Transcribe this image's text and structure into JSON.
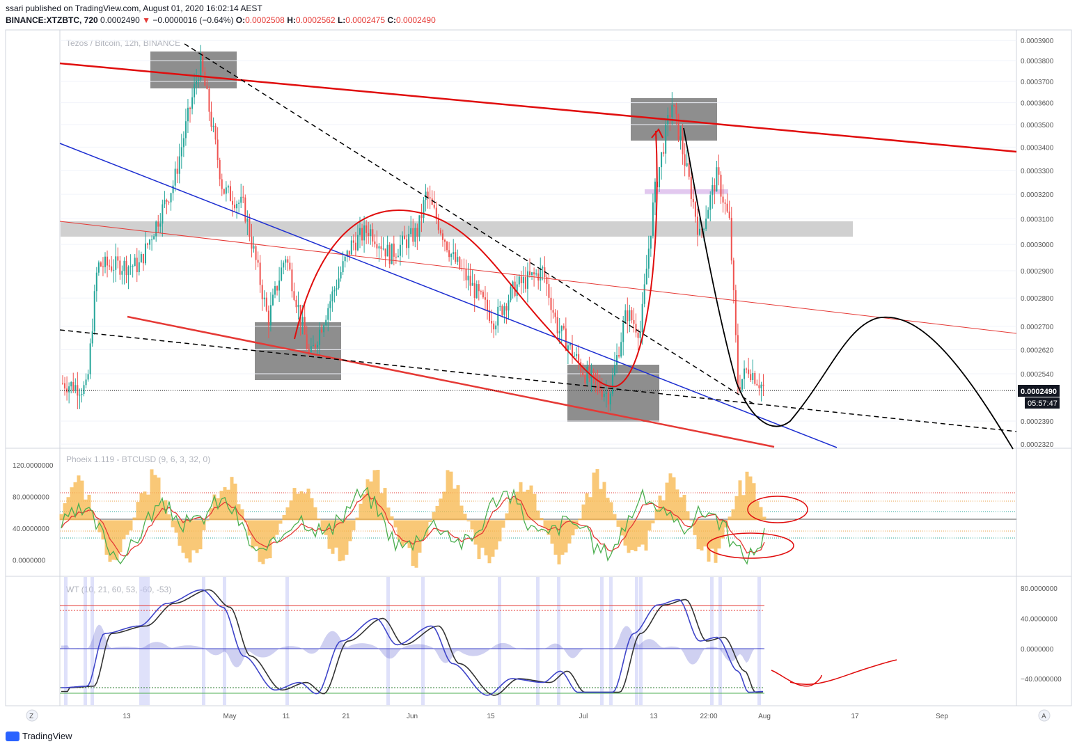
{
  "header": {
    "publisher": "ssari published on TradingView.com, August 01, 2020 16:02:14 AEST",
    "symbol": "BINANCE:XTZBTC, 720",
    "last": "0.0002490",
    "change": "−0.0000016 (−0.64%)",
    "o_label": "O:",
    "o": "0.0002508",
    "h_label": "H:",
    "h": "0.0002562",
    "l_label": "L:",
    "l": "0.0002475",
    "c_label": "C:",
    "c": "0.0002490"
  },
  "main_pane": {
    "watermark": "Tezos / Bitcoin, 12h, BINANCE",
    "price_tag": "0.0002490",
    "countdown": "05:57:47"
  },
  "pane2": {
    "label": "Phoeix 1.119 - BTCUSD (9, 6, 3, 32, 0)"
  },
  "pane3": {
    "label": "WT (10, 21, 60, 53, -60, -53)"
  },
  "corners": {
    "left": "Z",
    "right": "A"
  },
  "footer": {
    "brand": "TradingView"
  },
  "colors": {
    "up": "#26a69a",
    "down": "#ef5350",
    "resistance": "#e53935",
    "channel": "#1e2fd1",
    "zone": "#7a7a7a",
    "band": "#c8c8c8",
    "osc_fill": "#f7b54a",
    "wt_line": "#3f45c9",
    "wt_signal": "#333333"
  },
  "chart_data": [
    {
      "type": "candlestick",
      "pane": "price",
      "y_ticks": [
        "0.0003900",
        "0.0003800",
        "0.0003700",
        "0.0003600",
        "0.0003500",
        "0.0003400",
        "0.0003300",
        "0.0003200",
        "0.0003100",
        "0.0003000",
        "0.0002900",
        "0.0002800",
        "0.0002700",
        "0.0002620",
        "0.0002540",
        "0.0002390",
        "0.0002320"
      ],
      "y_scale": "log",
      "ylim": [
        0.000231,
        0.000395
      ],
      "x_ticks": [
        "13",
        "May",
        "11",
        "21",
        "Jun",
        "15",
        "Jul",
        "13",
        "22:00",
        "Aug",
        "17",
        "Sep"
      ],
      "series_close_approx": [
        {
          "label": "Apr start",
          "value": 0.000251
        },
        {
          "label": "Apr 18 peak",
          "value": 0.000379
        },
        {
          "label": "May low",
          "value": 0.000259
        },
        {
          "label": "Jun high",
          "value": 0.00032
        },
        {
          "label": "Jul low",
          "value": 0.000247
        },
        {
          "label": "Jul 17 high",
          "value": 0.00036
        },
        {
          "label": "Aug 1 last",
          "value": 0.000249
        }
      ],
      "grid": true
    },
    {
      "type": "line",
      "pane": "oscillator",
      "y_ticks": [
        "120.0000000",
        "80.0000000",
        "40.0000000",
        "0.0000000"
      ],
      "ylim": [
        -20,
        140
      ]
    },
    {
      "type": "line",
      "pane": "wave_trend",
      "y_ticks": [
        "80.0000000",
        "40.0000000",
        "0.0000000",
        "−40.0000000"
      ],
      "ylim": [
        -75,
        95
      ]
    }
  ]
}
